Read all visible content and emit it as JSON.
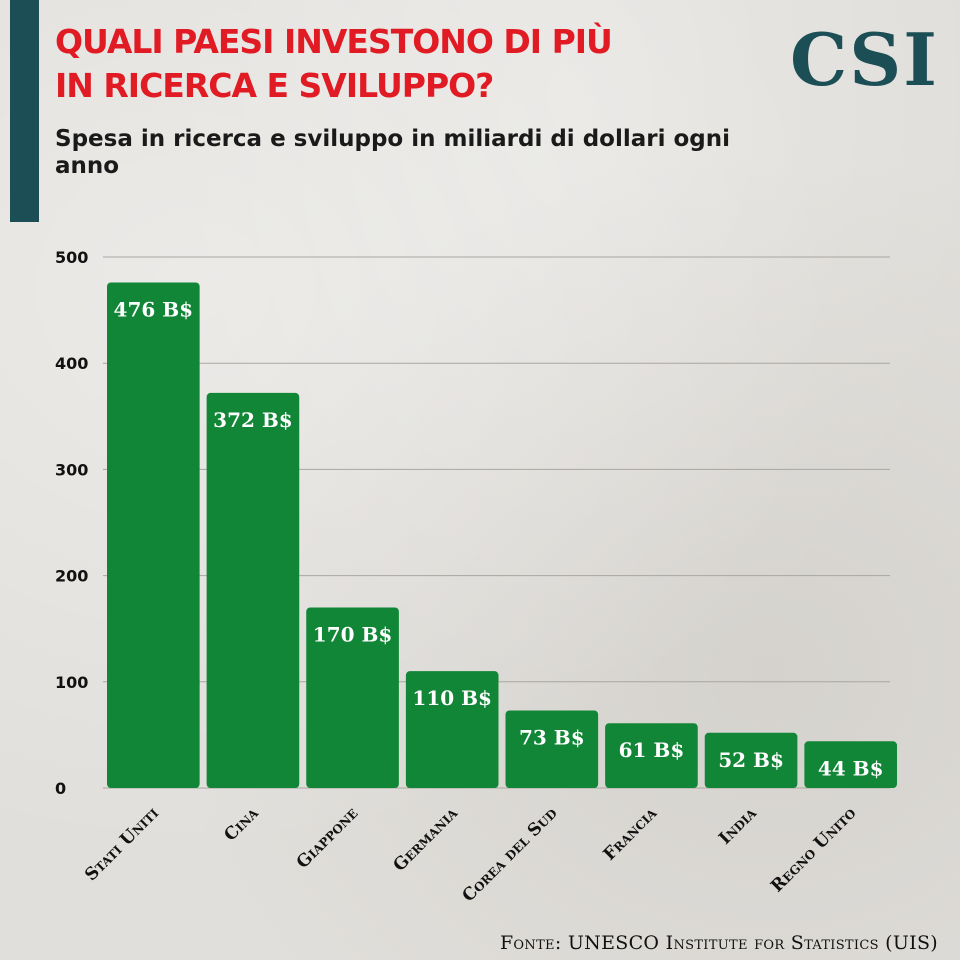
{
  "brand": {
    "logo": "CSI",
    "accent_color": "#1c4e55",
    "title_color": "#e01b24",
    "bar_color": "#108636"
  },
  "header": {
    "title_lines": [
      "QUALI PAESI INVESTONO DI PIÙ",
      "IN RICERCA E SVILUPPO?"
    ],
    "subtitle": "Spesa in ricerca e sviluppo in miliardi di dollari ogni anno"
  },
  "chart_data": {
    "type": "bar",
    "title": "QUALI PAESI INVESTONO DI PIÙ IN RICERCA E SVILUPPO?",
    "subtitle": "Spesa in ricerca e sviluppo in miliardi di dollari ogni anno",
    "xlabel": "",
    "ylabel": "",
    "categories": [
      "Stati Uniti",
      "Cina",
      "Giappone",
      "Germania",
      "Corea del Sud",
      "Francia",
      "India",
      "Regno Unito"
    ],
    "values": [
      476,
      372,
      170,
      110,
      73,
      61,
      52,
      44
    ],
    "data_labels": [
      "476 B$",
      "372 B$",
      "170 B$",
      "110 B$",
      "73 B$",
      "61 B$",
      "52 B$",
      "44 B$"
    ],
    "ylim": [
      0,
      500
    ],
    "yticks": [
      0,
      100,
      200,
      300,
      400,
      500
    ],
    "grid": true,
    "legend": "none"
  },
  "footer": {
    "source": "Fonte: UNESCO Institute for Statistics (UIS)"
  }
}
